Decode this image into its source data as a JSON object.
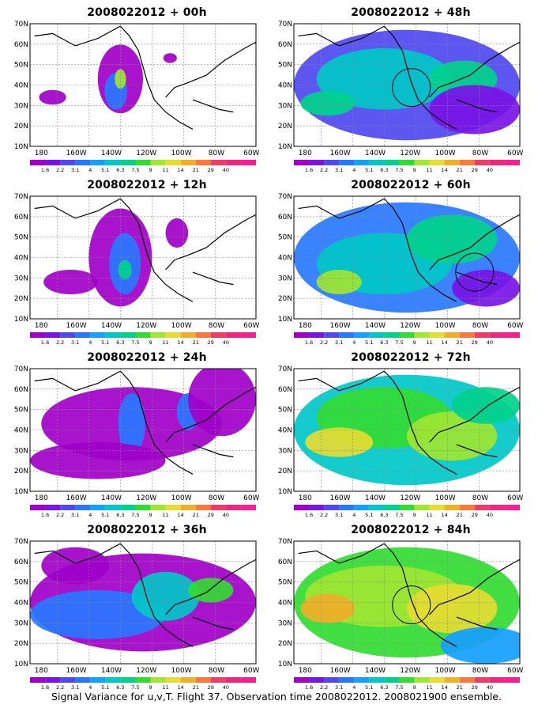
{
  "caption": "Signal Variance for u,v,T. Flight 37. Observation time 2008022012. 2008021900 ensemble.",
  "colorbar": {
    "labels": [
      "1.6",
      "2.2",
      "3.1",
      "4",
      "5.1",
      "6.3",
      "7.5",
      "9",
      "11",
      "14",
      "21",
      "29",
      "40"
    ],
    "colors": [
      "#a000c8",
      "#7814e6",
      "#5048f0",
      "#2878ff",
      "#14a0ff",
      "#00c8c8",
      "#00d28c",
      "#32dc32",
      "#a0e632",
      "#e6dc32",
      "#f0af28",
      "#fa783c",
      "#f03c64",
      "#f0287d",
      "#fa1e96"
    ]
  },
  "axes": {
    "lat_labels": [
      "70N",
      "60N",
      "50N",
      "40N",
      "30N",
      "20N",
      "10N"
    ],
    "lon_labels": [
      "180",
      "160W",
      "140W",
      "120W",
      "100W",
      "80W",
      "60W"
    ]
  },
  "panels": [
    {
      "title": "2008022012 + 00h",
      "level": 0
    },
    {
      "title": "2008022012 + 12h",
      "level": 1
    },
    {
      "title": "2008022012 + 24h",
      "level": 2
    },
    {
      "title": "2008022012 + 36h",
      "level": 3
    },
    {
      "title": "2008022012 + 48h",
      "level": 4
    },
    {
      "title": "2008022012 + 60h",
      "level": 5
    },
    {
      "title": "2008022012 + 72h",
      "level": 6
    },
    {
      "title": "2008022012 + 84h",
      "level": 7
    }
  ]
}
